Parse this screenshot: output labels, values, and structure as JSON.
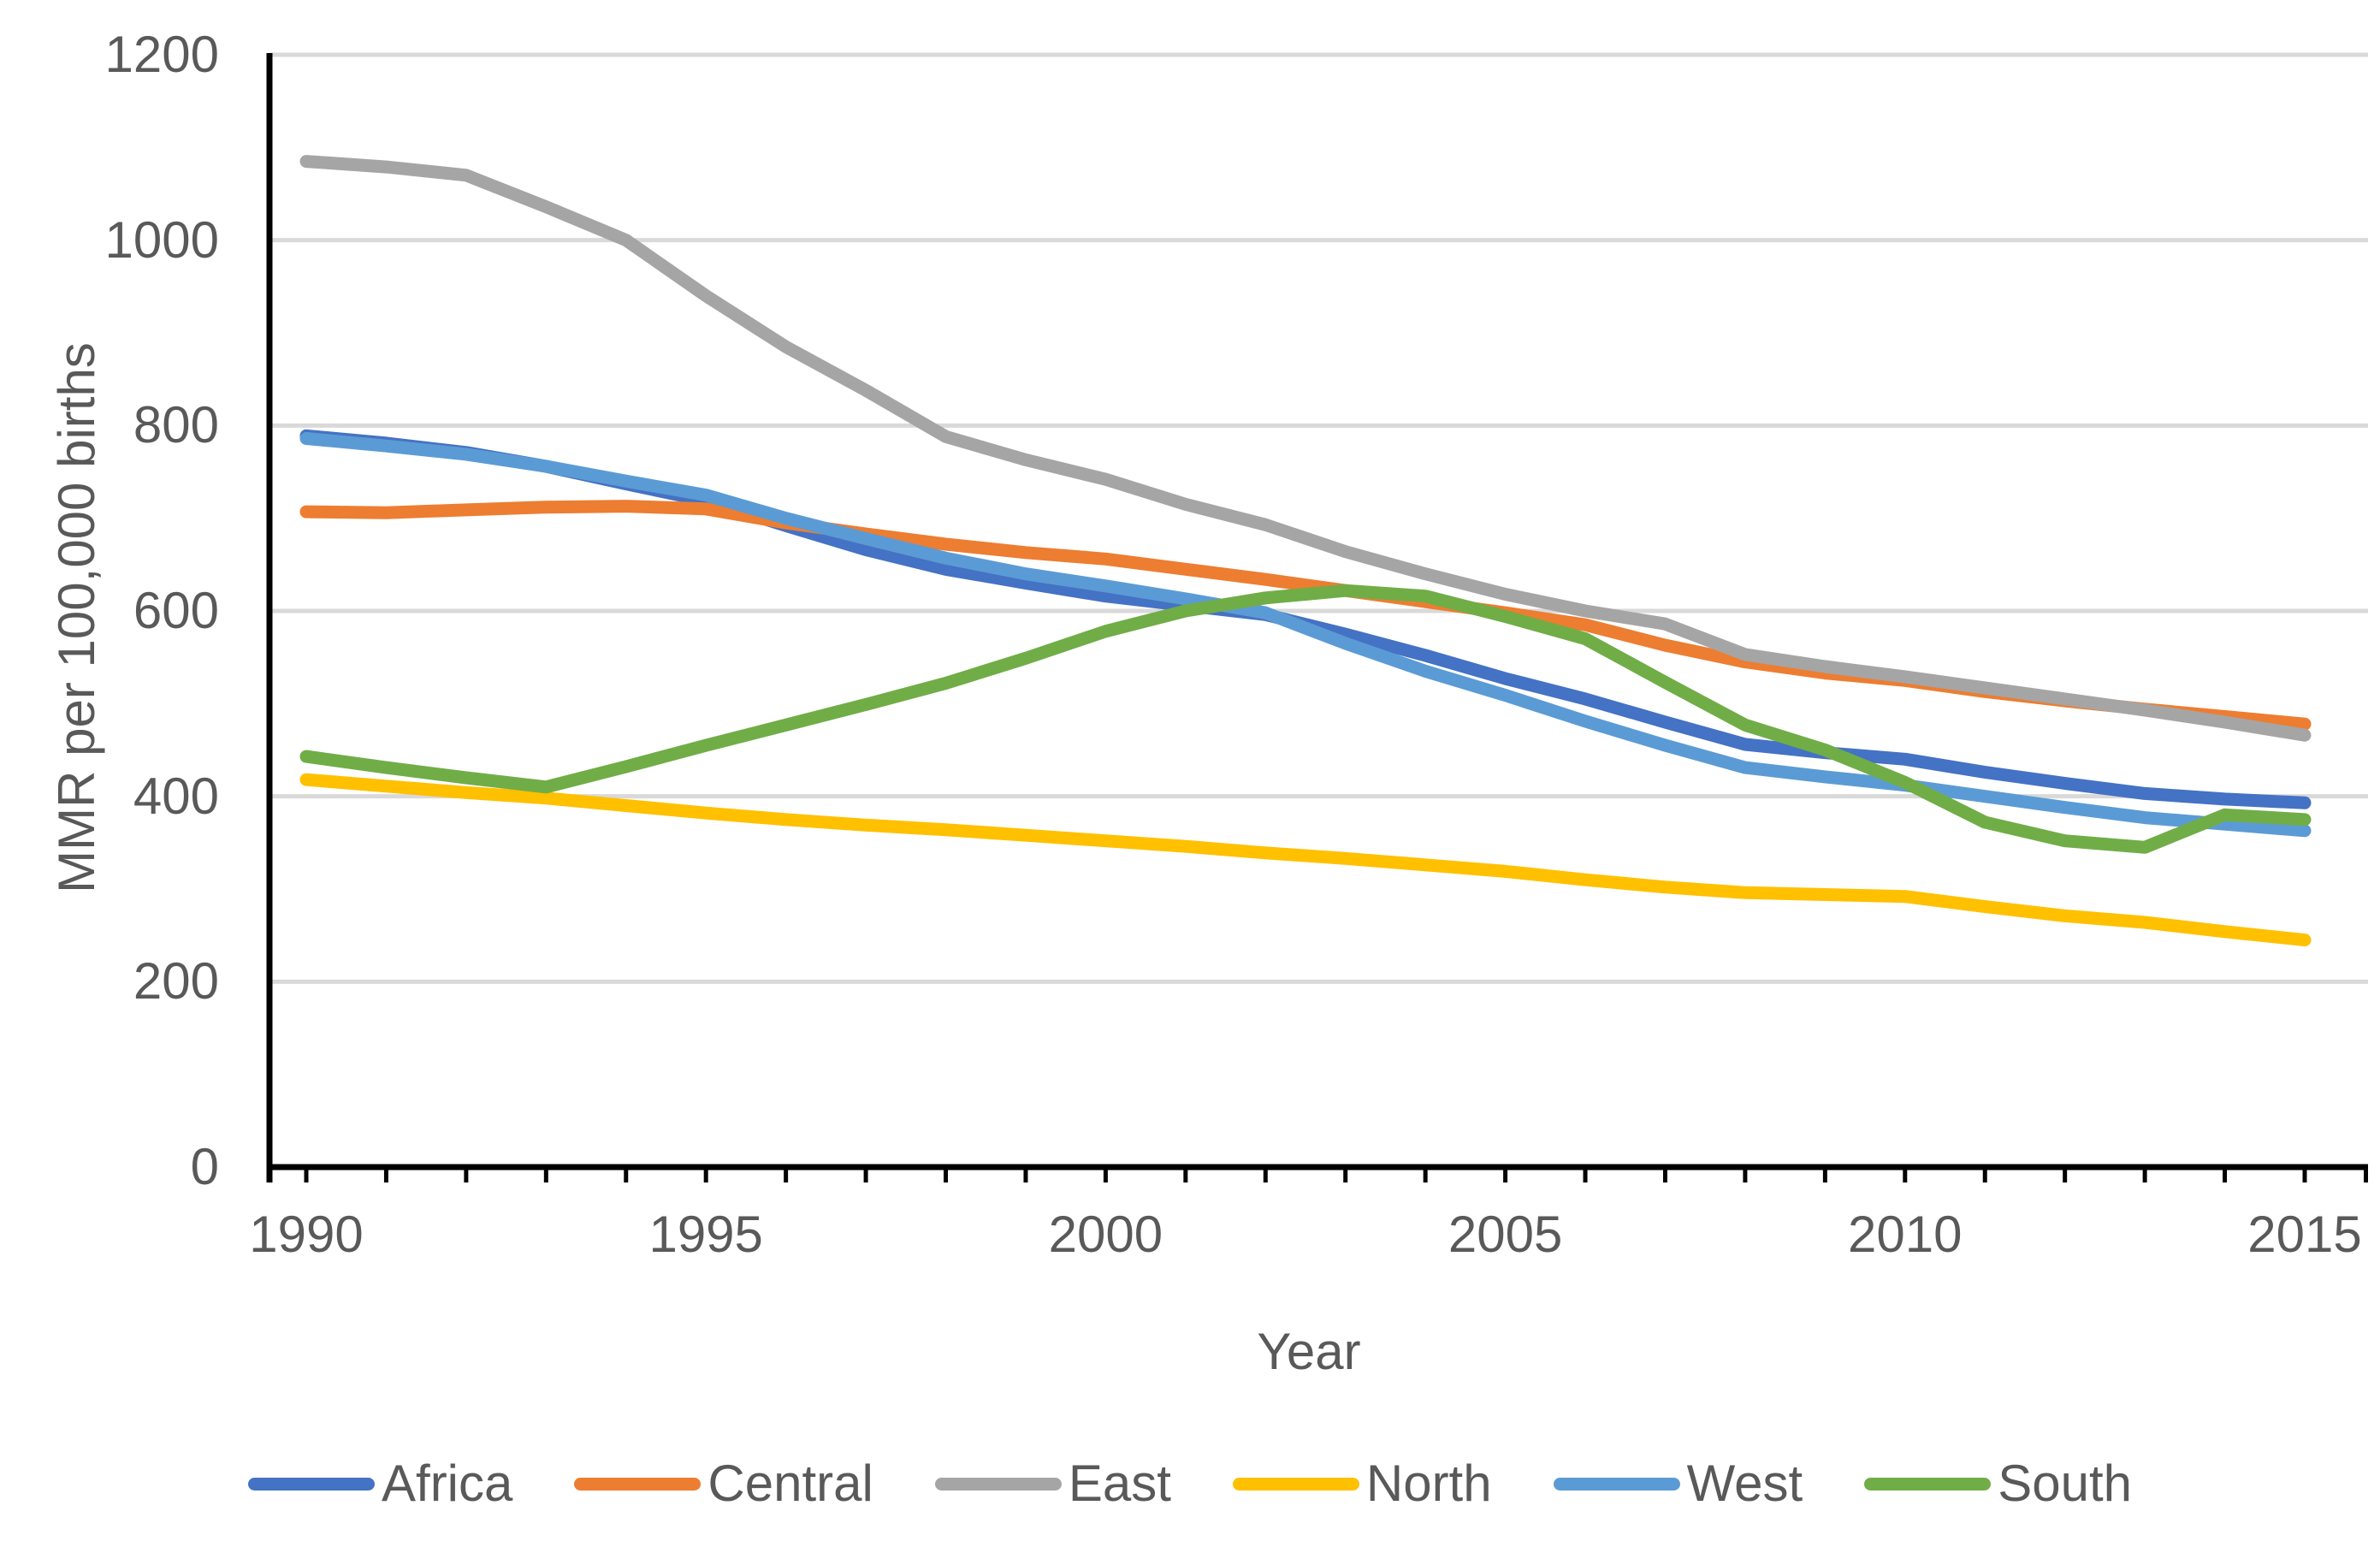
{
  "chart_data": {
    "type": "line",
    "title": "",
    "xlabel": "Year",
    "ylabel": "MMR per 100,000 births",
    "x": [
      1990,
      1991,
      1992,
      1993,
      1994,
      1995,
      1996,
      1997,
      1998,
      1999,
      2000,
      2001,
      2002,
      2003,
      2004,
      2005,
      2006,
      2007,
      2008,
      2009,
      2010,
      2011,
      2012,
      2013,
      2014,
      2015
    ],
    "xticks": [
      1990,
      1995,
      2000,
      2005,
      2010,
      2015
    ],
    "xtick_labels": [
      "1990",
      "1995",
      "2000",
      "2005",
      "2010",
      "2015"
    ],
    "yticks": [
      0,
      200,
      400,
      600,
      800,
      1000,
      1200
    ],
    "ytick_labels": [
      "0",
      "200",
      "400",
      "600",
      "800",
      "1000",
      "1200"
    ],
    "ylim": [
      0,
      1200
    ],
    "grid": "horizontal",
    "legend_position": "bottom",
    "series": [
      {
        "name": "Africa",
        "color": "#4472C4",
        "values": [
          789,
          781,
          771,
          756,
          737,
          719,
          692,
          666,
          645,
          630,
          616,
          606,
          596,
          575,
          552,
          527,
          505,
          480,
          456,
          447,
          440,
          426,
          414,
          403,
          397,
          393
        ]
      },
      {
        "name": "Central",
        "color": "#ED7D31",
        "values": [
          707,
          706,
          709,
          712,
          713,
          710,
          695,
          683,
          672,
          663,
          656,
          645,
          634,
          622,
          610,
          598,
          585,
          563,
          545,
          533,
          525,
          513,
          503,
          494,
          486,
          478
        ]
      },
      {
        "name": "East",
        "color": "#A5A5A5",
        "values": [
          1085,
          1079,
          1070,
          1036,
          1000,
          940,
          885,
          838,
          788,
          763,
          742,
          715,
          693,
          664,
          640,
          618,
          600,
          586,
          553,
          540,
          529,
          517,
          505,
          493,
          480,
          466
        ]
      },
      {
        "name": "North",
        "color": "#FFC000",
        "values": [
          418,
          411,
          404,
          398,
          390,
          382,
          375,
          369,
          364,
          358,
          352,
          346,
          339,
          333,
          326,
          319,
          310,
          302,
          296,
          294,
          292,
          281,
          271,
          264,
          254,
          245
        ]
      },
      {
        "name": "West",
        "color": "#5B9BD5",
        "values": [
          786,
          778,
          769,
          756,
          740,
          725,
          700,
          678,
          657,
          640,
          627,
          613,
          598,
          565,
          535,
          509,
          481,
          455,
          431,
          421,
          412,
          400,
          388,
          377,
          370,
          363
        ]
      },
      {
        "name": "South",
        "color": "#70AD47",
        "values": [
          443,
          431,
          420,
          410,
          432,
          455,
          477,
          499,
          522,
          549,
          578,
          600,
          614,
          622,
          616,
          594,
          570,
          523,
          477,
          450,
          415,
          372,
          352,
          345,
          380,
          375
        ]
      }
    ],
    "axis_color": "#000000",
    "gridline_color": "#D9D9D9",
    "text_color": "#595959"
  }
}
